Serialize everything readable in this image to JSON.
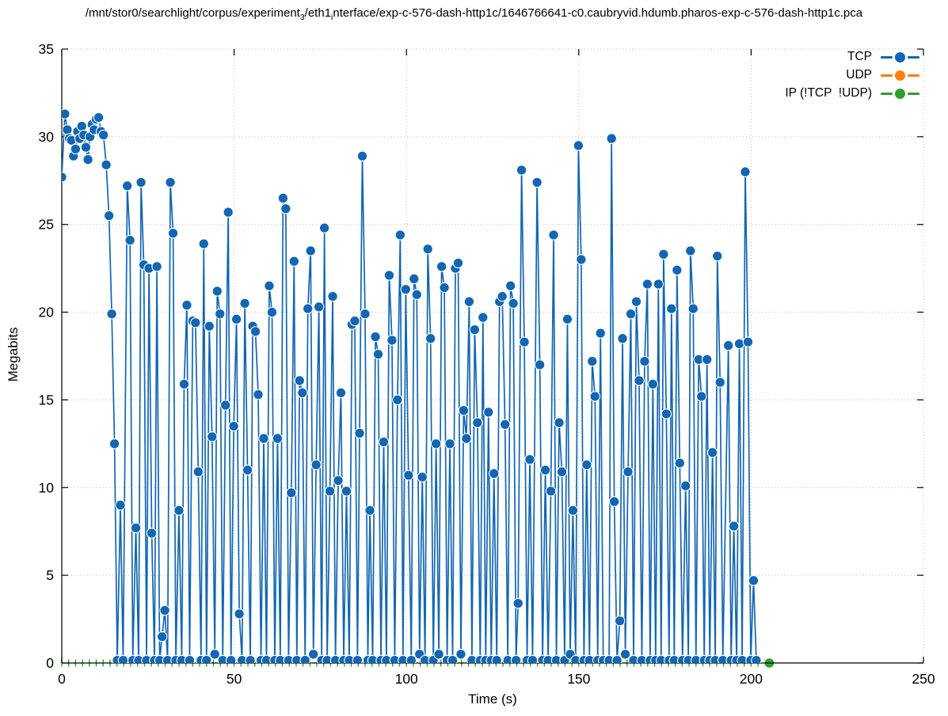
{
  "title": {
    "prefix": "/mnt/stor0/searchlight/corpus/experiment",
    "sub1": "3",
    "mid": "/eth1",
    "sub2": "i",
    "suffix": "nterface/exp-c-576-dash-http1c/1646766641-c0.caubryvid.hdumb.pharos-exp-c-576-dash-http1c.pca"
  },
  "legend": {
    "items": [
      {
        "label": "TCP",
        "color": "#1266b2"
      },
      {
        "label": "UDP",
        "color": "#ff7f0e"
      },
      {
        "label": "IP (!TCP  !UDP)",
        "color": "#2ca02c"
      }
    ]
  },
  "chart_data": {
    "type": "line",
    "title_plain": "/mnt/stor0/searchlight/corpus/experiment_3/eth1_interface/exp-c-576-dash-http1c/1646766641-c0.caubryvid.hdumb.pharos-exp-c-576-dash-http1c.pca",
    "xlabel": "Time (s)",
    "ylabel": "Megabits",
    "xlim": [
      0,
      250
    ],
    "ylim": [
      0,
      35
    ],
    "xticks": [
      0,
      50,
      100,
      150,
      200,
      250
    ],
    "yticks": [
      0,
      5,
      10,
      15,
      20,
      25,
      30,
      35
    ],
    "grid": true,
    "legend_position": "top-right",
    "series": [
      {
        "name": "TCP",
        "color": "#1266b2",
        "style": "linespoints",
        "points": [
          [
            0,
            27.7
          ],
          [
            0.9,
            31.3
          ],
          [
            1.6,
            30.4
          ],
          [
            2.2,
            29.9
          ],
          [
            2.8,
            29.8
          ],
          [
            3.4,
            28.9
          ],
          [
            4,
            29.3
          ],
          [
            4.6,
            30.3
          ],
          [
            5.2,
            29.9
          ],
          [
            5.8,
            30.6
          ],
          [
            6.4,
            30.1
          ],
          [
            7,
            29.4
          ],
          [
            7.6,
            28.7
          ],
          [
            8.2,
            30
          ],
          [
            8.8,
            30.7
          ],
          [
            9.4,
            30.4
          ],
          [
            10,
            31
          ],
          [
            10.7,
            31.1
          ],
          [
            11.4,
            30.3
          ],
          [
            12.1,
            30.1
          ],
          [
            12.9,
            28.4
          ],
          [
            13.7,
            25.5
          ],
          [
            14.5,
            19.9
          ],
          [
            15.3,
            12.5
          ],
          [
            16.1,
            0.15
          ],
          [
            17,
            9
          ],
          [
            17.8,
            0.15
          ],
          [
            19,
            27.2
          ],
          [
            19.8,
            24.1
          ],
          [
            20.6,
            0.15
          ],
          [
            21.5,
            7.7
          ],
          [
            22.3,
            0.15
          ],
          [
            23,
            27.4
          ],
          [
            23.8,
            22.7
          ],
          [
            24.6,
            0.15
          ],
          [
            25.3,
            22.5
          ],
          [
            26.1,
            7.4
          ],
          [
            26.9,
            0.15
          ],
          [
            27.6,
            22.6
          ],
          [
            28.4,
            0.15
          ],
          [
            29.1,
            1.5
          ],
          [
            29.9,
            3
          ],
          [
            30.7,
            0.15
          ],
          [
            31.5,
            27.4
          ],
          [
            32.3,
            24.5
          ],
          [
            33.1,
            0.15
          ],
          [
            34,
            8.7
          ],
          [
            34.8,
            0.15
          ],
          [
            35.5,
            15.9
          ],
          [
            36.3,
            20.4
          ],
          [
            37.1,
            0.15
          ],
          [
            38,
            19.5
          ],
          [
            38.8,
            19.4
          ],
          [
            39.6,
            10.9
          ],
          [
            40.4,
            0.15
          ],
          [
            41.2,
            23.9
          ],
          [
            42,
            0.15
          ],
          [
            42.8,
            19.2
          ],
          [
            43.6,
            12.9
          ],
          [
            44.4,
            0.5
          ],
          [
            45.1,
            21.2
          ],
          [
            45.9,
            19.9
          ],
          [
            46.7,
            0.15
          ],
          [
            47.5,
            14.7
          ],
          [
            48.3,
            25.7
          ],
          [
            49.1,
            0.15
          ],
          [
            49.9,
            13.5
          ],
          [
            50.7,
            19.6
          ],
          [
            51.5,
            2.8
          ],
          [
            52.3,
            0.15
          ],
          [
            53.1,
            20.5
          ],
          [
            53.9,
            11
          ],
          [
            54.7,
            0.15
          ],
          [
            55.4,
            19.2
          ],
          [
            56.2,
            18.9
          ],
          [
            57,
            15.3
          ],
          [
            57.8,
            0.15
          ],
          [
            58.6,
            12.8
          ],
          [
            59.4,
            0.15
          ],
          [
            60.2,
            21.5
          ],
          [
            61,
            20
          ],
          [
            61.8,
            0.15
          ],
          [
            62.6,
            12.8
          ],
          [
            63.4,
            0.15
          ],
          [
            64.2,
            26.5
          ],
          [
            65,
            25.9
          ],
          [
            65.8,
            0.15
          ],
          [
            66.6,
            9.7
          ],
          [
            67.4,
            22.9
          ],
          [
            68.2,
            0.15
          ],
          [
            69,
            16.1
          ],
          [
            69.8,
            15.4
          ],
          [
            70.6,
            0.15
          ],
          [
            71.4,
            20.2
          ],
          [
            72.2,
            23.5
          ],
          [
            73,
            0.5
          ],
          [
            73.8,
            11.3
          ],
          [
            74.6,
            20.3
          ],
          [
            75.4,
            0.15
          ],
          [
            76.2,
            24.8
          ],
          [
            77,
            0.15
          ],
          [
            77.8,
            9.8
          ],
          [
            78.6,
            20.9
          ],
          [
            79.4,
            0.15
          ],
          [
            80.2,
            10.4
          ],
          [
            81,
            15.4
          ],
          [
            81.8,
            0.15
          ],
          [
            82.6,
            9.8
          ],
          [
            83.4,
            0.15
          ],
          [
            84.2,
            19.3
          ],
          [
            85,
            19.5
          ],
          [
            85.8,
            0.15
          ],
          [
            86.4,
            13.1
          ],
          [
            87.2,
            28.9
          ],
          [
            88,
            19.9
          ],
          [
            88.8,
            0.15
          ],
          [
            89.4,
            8.7
          ],
          [
            90.2,
            0.15
          ],
          [
            91,
            18.6
          ],
          [
            91.8,
            17.6
          ],
          [
            92.6,
            0.15
          ],
          [
            93.4,
            12.6
          ],
          [
            94.2,
            0.15
          ],
          [
            95,
            22.1
          ],
          [
            95.8,
            18.4
          ],
          [
            96.6,
            0.15
          ],
          [
            97.4,
            15
          ],
          [
            98.2,
            24.4
          ],
          [
            99,
            0.15
          ],
          [
            99.8,
            21.3
          ],
          [
            100.6,
            10.7
          ],
          [
            101.4,
            0.15
          ],
          [
            102.2,
            21.9
          ],
          [
            103,
            21
          ],
          [
            103.8,
            0.5
          ],
          [
            104.6,
            10.6
          ],
          [
            105.4,
            0.15
          ],
          [
            106.2,
            23.6
          ],
          [
            107,
            18.5
          ],
          [
            107.8,
            0.15
          ],
          [
            108.6,
            12.5
          ],
          [
            109.4,
            0.5
          ],
          [
            110.2,
            22.6
          ],
          [
            111,
            21.4
          ],
          [
            111.8,
            0.15
          ],
          [
            112.6,
            12.5
          ],
          [
            113.4,
            0.15
          ],
          [
            114.2,
            22.5
          ],
          [
            115,
            22.8
          ],
          [
            115.8,
            0.5
          ],
          [
            116.6,
            14.4
          ],
          [
            117.4,
            12.8
          ],
          [
            118.2,
            20.6
          ],
          [
            119,
            0.15
          ],
          [
            119.8,
            19
          ],
          [
            120.6,
            13.7
          ],
          [
            121.4,
            0.15
          ],
          [
            122.2,
            19.7
          ],
          [
            123,
            0.15
          ],
          [
            123.8,
            14.3
          ],
          [
            124.6,
            0.15
          ],
          [
            125.4,
            10.8
          ],
          [
            126.2,
            0.15
          ],
          [
            127,
            20.6
          ],
          [
            127.8,
            20.9
          ],
          [
            128.6,
            13.6
          ],
          [
            129.4,
            0.15
          ],
          [
            130.2,
            21.5
          ],
          [
            131,
            20.5
          ],
          [
            131.8,
            0.15
          ],
          [
            132.4,
            3.4
          ],
          [
            133.4,
            28.1
          ],
          [
            134.2,
            18.3
          ],
          [
            135,
            0.15
          ],
          [
            135.8,
            11.6
          ],
          [
            136.6,
            0.15
          ],
          [
            137.9,
            27.4
          ],
          [
            138.7,
            17
          ],
          [
            139.5,
            0.15
          ],
          [
            140.3,
            11
          ],
          [
            141.1,
            0.15
          ],
          [
            141.9,
            9.8
          ],
          [
            142.7,
            24.4
          ],
          [
            143.5,
            0.15
          ],
          [
            144.3,
            13.7
          ],
          [
            145.1,
            10.9
          ],
          [
            145.9,
            0.15
          ],
          [
            146.7,
            19.6
          ],
          [
            147.5,
            0.5
          ],
          [
            148.3,
            8.7
          ],
          [
            149.1,
            0.15
          ],
          [
            149.9,
            29.5
          ],
          [
            150.7,
            23
          ],
          [
            151.5,
            0.15
          ],
          [
            152.3,
            11.3
          ],
          [
            153.1,
            0.15
          ],
          [
            153.9,
            17.2
          ],
          [
            154.7,
            15.2
          ],
          [
            155.5,
            0.15
          ],
          [
            156.3,
            18.8
          ],
          [
            157.1,
            0.15
          ],
          [
            158.8,
            0.15
          ],
          [
            159.5,
            29.9
          ],
          [
            160.3,
            9.2
          ],
          [
            161.1,
            0.15
          ],
          [
            161.9,
            2.4
          ],
          [
            162.7,
            18.5
          ],
          [
            163.5,
            0.5
          ],
          [
            164.3,
            10.9
          ],
          [
            165.1,
            19.9
          ],
          [
            165.9,
            0.15
          ],
          [
            166.7,
            20.6
          ],
          [
            167.5,
            16.1
          ],
          [
            168.3,
            0.15
          ],
          [
            169.1,
            17.2
          ],
          [
            169.9,
            21.6
          ],
          [
            170.7,
            0.15
          ],
          [
            171.5,
            15.9
          ],
          [
            172.3,
            0.15
          ],
          [
            173.1,
            21.6
          ],
          [
            173.9,
            0.15
          ],
          [
            174.6,
            23.3
          ],
          [
            175.4,
            14.2
          ],
          [
            176.2,
            0.15
          ],
          [
            176.9,
            20.2
          ],
          [
            177.7,
            0.15
          ],
          [
            178.5,
            22.4
          ],
          [
            179.3,
            11.4
          ],
          [
            180.1,
            0.15
          ],
          [
            181,
            10.1
          ],
          [
            181.8,
            0.15
          ],
          [
            182.4,
            23.5
          ],
          [
            183.2,
            20.2
          ],
          [
            184,
            0.15
          ],
          [
            184.8,
            17.3
          ],
          [
            185.6,
            15.2
          ],
          [
            186.4,
            0.15
          ],
          [
            187.2,
            17.3
          ],
          [
            188,
            0.15
          ],
          [
            188.8,
            12
          ],
          [
            189.6,
            0.15
          ],
          [
            190.2,
            23.2
          ],
          [
            191,
            16
          ],
          [
            191.8,
            0.15
          ],
          [
            193.4,
            18.1
          ],
          [
            194.2,
            0.15
          ],
          [
            195,
            7.8
          ],
          [
            195.8,
            0.15
          ],
          [
            196.6,
            18.2
          ],
          [
            197.4,
            0.15
          ],
          [
            198.3,
            28
          ],
          [
            199.1,
            18.3
          ],
          [
            199.9,
            0.15
          ],
          [
            200.7,
            4.7
          ],
          [
            201.5,
            0.15
          ]
        ]
      },
      {
        "name": "UDP",
        "color": "#ff7f0e",
        "style": "linespoints",
        "points": []
      },
      {
        "name": "IP (!TCP  !UDP)",
        "color": "#2ca02c",
        "style": "linespoints",
        "zero_line": {
          "value": 0,
          "t_start": 0,
          "t_end": 205.3,
          "marker_interval_s": 2
        },
        "points": [
          [
            205.3,
            0
          ]
        ]
      }
    ]
  }
}
